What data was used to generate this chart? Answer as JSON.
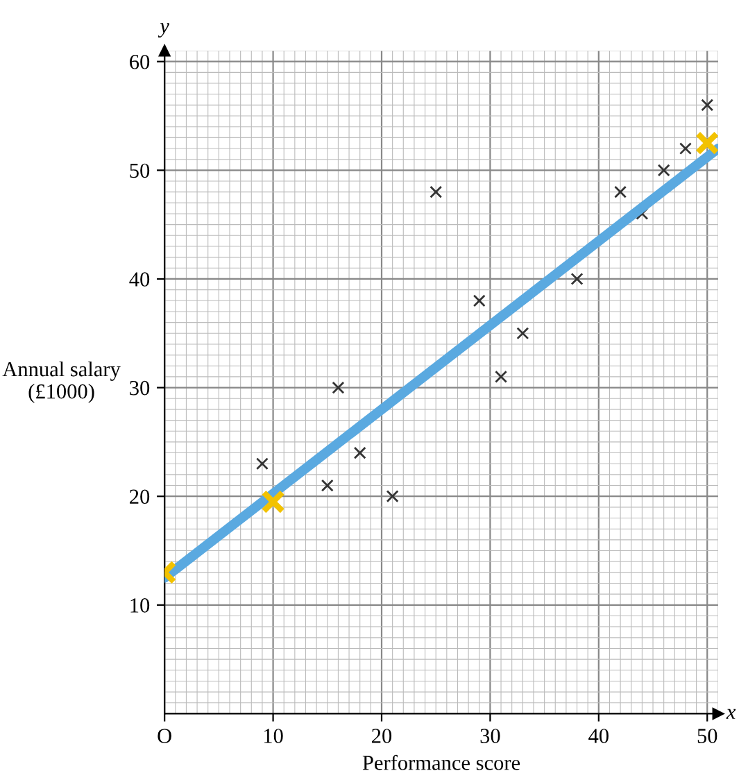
{
  "chart_data": {
    "type": "scatter",
    "xlabel": "Performance score",
    "ylabel": "Annual salary\n(£1000)",
    "x": [
      9,
      15,
      16,
      18,
      21,
      25,
      29,
      31,
      33,
      38,
      42,
      44,
      46,
      48,
      50
    ],
    "series": [
      {
        "color": "#333333",
        "marker": "cross",
        "values": [
          23,
          21,
          30,
          24,
          20,
          48,
          38,
          31,
          35,
          40,
          48,
          46,
          50,
          52,
          56
        ]
      },
      {
        "type": "line",
        "color": "#5aa9e0",
        "x": [
          0,
          51
        ],
        "values": [
          12.5,
          52
        ]
      },
      {
        "type": "scatter",
        "color": "#f2c200",
        "marker": "cross",
        "x": [
          0,
          10,
          50
        ],
        "values": [
          13,
          19.5,
          52.5
        ]
      }
    ],
    "xlim": [
      0,
      51
    ],
    "ylim": [
      0,
      61
    ],
    "xticks": [
      {
        "value": 0,
        "label": "O"
      },
      10,
      20,
      30,
      40,
      50
    ],
    "yticks": [
      10,
      20,
      30,
      40,
      50,
      60
    ],
    "grid": true,
    "annotations": [
      "x",
      "y"
    ]
  }
}
